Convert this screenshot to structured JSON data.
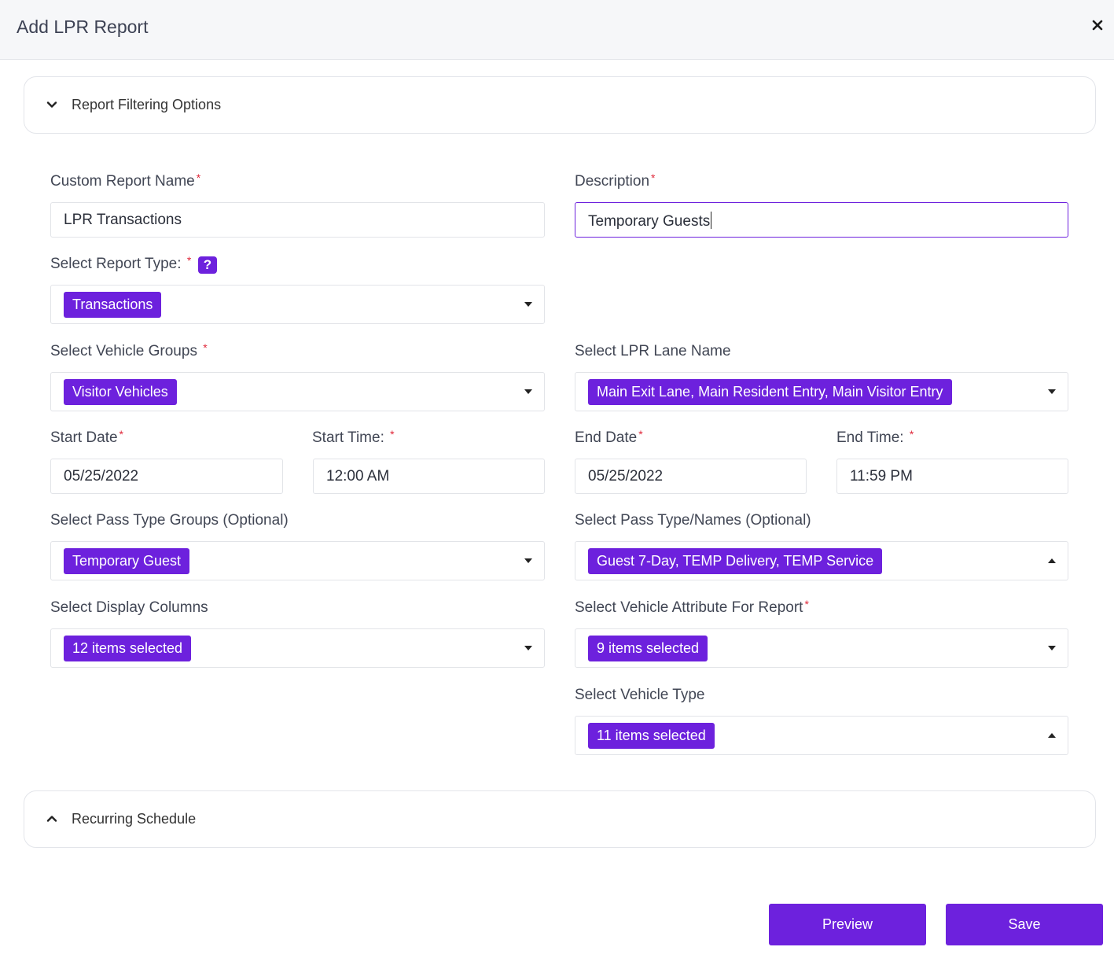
{
  "dialog": {
    "title": "Add LPR Report"
  },
  "sections": {
    "filtering": "Report Filtering Options",
    "recurring": "Recurring Schedule"
  },
  "fields": {
    "report_name": {
      "label": "Custom Report Name",
      "value": "LPR Transactions"
    },
    "description": {
      "label": "Description",
      "value": "Temporary Guests"
    },
    "report_type": {
      "label": "Select Report Type: ",
      "value": "Transactions",
      "help": "?"
    },
    "vehicle_groups": {
      "label": "Select Vehicle Groups ",
      "value": "Visitor Vehicles"
    },
    "lane_name": {
      "label": "Select LPR Lane Name",
      "value": "Main Exit Lane, Main Resident Entry, Main Visitor Entry"
    },
    "start_date": {
      "label": "Start Date",
      "value": "05/25/2022"
    },
    "start_time": {
      "label": "Start Time: ",
      "value": "12:00 AM"
    },
    "end_date": {
      "label": "End Date",
      "value": "05/25/2022"
    },
    "end_time": {
      "label": "End Time: ",
      "value": "11:59 PM"
    },
    "pass_type_groups": {
      "label": "Select Pass Type Groups (Optional)",
      "value": "Temporary Guest"
    },
    "pass_type_names": {
      "label": "Select Pass Type/Names (Optional)",
      "value": "Guest 7-Day, TEMP Delivery, TEMP Service"
    },
    "display_columns": {
      "label": "Select Display Columns",
      "value": "12 items selected"
    },
    "vehicle_attribute": {
      "label": "Select Vehicle Attribute For Report",
      "value": "9 items selected"
    },
    "vehicle_type": {
      "label": "Select Vehicle Type",
      "value": "11 items selected"
    }
  },
  "required_mark": "*",
  "buttons": {
    "preview": "Preview",
    "save": "Save"
  },
  "icons": {
    "close": "close-icon",
    "expand": "chevron-down-icon",
    "collapse": "chevron-up-icon",
    "dropdown": "caret-down-icon",
    "dropdown_open": "caret-up-icon"
  },
  "colors": {
    "accent": "#6d21dd",
    "required": "#e0283a",
    "header_bg": "#f6f7f9"
  }
}
